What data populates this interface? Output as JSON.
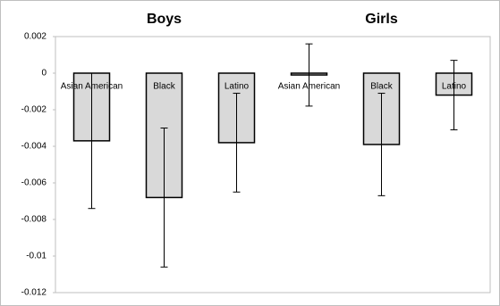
{
  "chart_data": {
    "type": "bar",
    "groups": [
      {
        "title": "Boys",
        "categories": [
          "Asian American",
          "Black",
          "Latino"
        ],
        "values": [
          -0.0037,
          -0.0068,
          -0.0038
        ],
        "errors": [
          0.0037,
          0.0038,
          0.0027
        ]
      },
      {
        "title": "Girls",
        "categories": [
          "Asian American",
          "Black",
          "Latino"
        ],
        "values": [
          -0.0001,
          -0.0039,
          -0.0012
        ],
        "errors": [
          0.0017,
          0.0028,
          0.0019
        ]
      }
    ],
    "color": "#d9d9d9",
    "ylim": [
      -0.012,
      0.002
    ],
    "yticks": [
      0.002,
      0,
      -0.002,
      -0.004,
      -0.006,
      -0.008,
      -0.01,
      -0.012
    ]
  }
}
